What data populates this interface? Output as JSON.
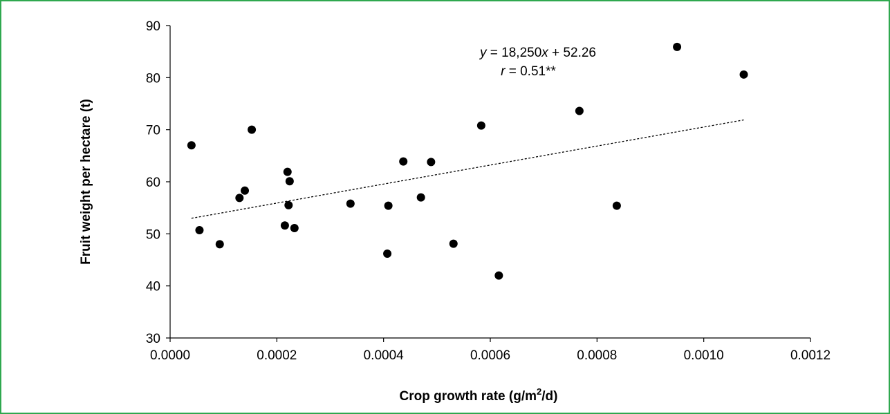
{
  "chart_data": {
    "type": "scatter",
    "title": "",
    "xlabel": "Crop growth rate (g/m²/d)",
    "xlabel_parts": {
      "before": "Crop growth rate (g/m",
      "sup": "2",
      "after": "/d)"
    },
    "ylabel": "Fruit weight per hectare  (t)",
    "xlim": [
      0.0,
      0.0012
    ],
    "ylim": [
      30,
      90
    ],
    "x_ticks": [
      "0.0000",
      "0.0002",
      "0.0004",
      "0.0006",
      "0.0008",
      "0.0010",
      "0.0012"
    ],
    "y_ticks": [
      "30",
      "40",
      "50",
      "60",
      "70",
      "80",
      "90"
    ],
    "grid": false,
    "marker_color": "#000000",
    "trendline": {
      "style": "dotted",
      "slope": 18250,
      "intercept": 52.26,
      "x_range": [
        4e-05,
        0.001075
      ],
      "equation_text": {
        "y_var": "y",
        "mid": " = 18,250",
        "x_var": "x",
        "end": " + 52.26"
      },
      "r_text": {
        "r_var": "r",
        "rest": " = 0.51**"
      }
    },
    "series": [
      {
        "points": [
          [
            4e-05,
            67.0
          ],
          [
            5.5e-05,
            50.7
          ],
          [
            9.3e-05,
            48.0
          ],
          [
            0.00013,
            56.9
          ],
          [
            0.00014,
            58.3
          ],
          [
            0.000153,
            70.0
          ],
          [
            0.000215,
            51.6
          ],
          [
            0.00022,
            61.9
          ],
          [
            0.000222,
            55.5
          ],
          [
            0.000224,
            60.1
          ],
          [
            0.000233,
            51.1
          ],
          [
            0.000338,
            55.8
          ],
          [
            0.000407,
            46.2
          ],
          [
            0.000409,
            55.4
          ],
          [
            0.000437,
            63.9
          ],
          [
            0.00047,
            57.0
          ],
          [
            0.000489,
            63.8
          ],
          [
            0.000531,
            48.1
          ],
          [
            0.000583,
            70.8
          ],
          [
            0.000616,
            42.0
          ],
          [
            0.000767,
            73.6
          ],
          [
            0.000837,
            55.4
          ],
          [
            0.00095,
            85.9
          ],
          [
            0.001075,
            80.6
          ]
        ]
      }
    ]
  }
}
